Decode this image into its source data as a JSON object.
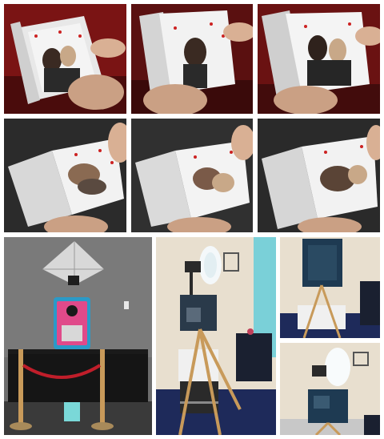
{
  "gallery": {
    "background": "#ffffff",
    "rows": [
      {
        "tiles": [
          {
            "subject": "flipbook-closed-1",
            "backdrop": "#7a1414"
          },
          {
            "subject": "flipbook-closed-2",
            "backdrop": "#5a1010"
          },
          {
            "subject": "flipbook-closed-3",
            "backdrop": "#6a1212"
          }
        ]
      },
      {
        "tiles": [
          {
            "subject": "flipbook-open-1",
            "backdrop": "#2b2b2b"
          },
          {
            "subject": "flipbook-open-2",
            "backdrop": "#303030"
          },
          {
            "subject": "flipbook-open-3",
            "backdrop": "#2a2a2a"
          }
        ]
      },
      {
        "tiles": [
          {
            "subject": "booth-with-umbrella-light"
          },
          {
            "subject": "booth-with-ring-light-and-printer"
          },
          {
            "subject": "booth-back-view"
          },
          {
            "subject": "booth-with-ring-light-back"
          }
        ]
      }
    ]
  }
}
